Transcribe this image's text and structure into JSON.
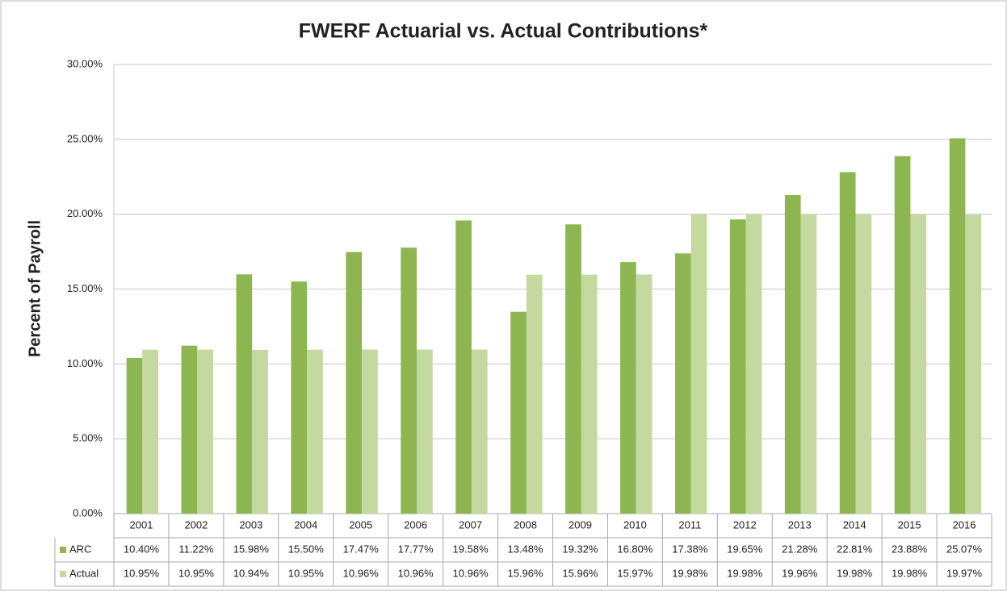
{
  "chart_data": {
    "type": "bar",
    "title": "FWERF Actuarial vs. Actual Contributions*",
    "y_label": "Percent of Payroll",
    "categories": [
      "2001",
      "2002",
      "2003",
      "2004",
      "2005",
      "2006",
      "2007",
      "2008",
      "2009",
      "2010",
      "2011",
      "2012",
      "2013",
      "2014",
      "2015",
      "2016"
    ],
    "series": [
      {
        "name": "ARC",
        "color": "#8db652",
        "values": [
          10.4,
          11.22,
          15.98,
          15.5,
          17.47,
          17.77,
          19.58,
          13.48,
          19.32,
          16.8,
          17.38,
          19.65,
          21.28,
          22.81,
          23.88,
          25.07
        ],
        "value_labels": [
          "10.40%",
          "11.22%",
          "15.98%",
          "15.50%",
          "17.47%",
          "17.77%",
          "19.58%",
          "13.48%",
          "19.32%",
          "16.80%",
          "17.38%",
          "19.65%",
          "21.28%",
          "22.81%",
          "23.88%",
          "25.07%"
        ]
      },
      {
        "name": "Actual",
        "color": "#c4d9a0",
        "values": [
          10.95,
          10.95,
          10.94,
          10.95,
          10.96,
          10.96,
          10.96,
          15.96,
          15.96,
          15.97,
          19.98,
          19.98,
          19.96,
          19.98,
          19.98,
          19.97
        ],
        "value_labels": [
          "10.95%",
          "10.95%",
          "10.94%",
          "10.95%",
          "10.96%",
          "10.96%",
          "10.96%",
          "15.96%",
          "15.96%",
          "15.97%",
          "19.98%",
          "19.98%",
          "19.96%",
          "19.98%",
          "19.98%",
          "19.97%"
        ]
      }
    ],
    "ylim": [
      0,
      30
    ],
    "yticks": [
      {
        "value": 0,
        "label": "0.00%"
      },
      {
        "value": 5,
        "label": "5.00%"
      },
      {
        "value": 10,
        "label": "10.00%"
      },
      {
        "value": 15,
        "label": "15.00%"
      },
      {
        "value": 20,
        "label": "20.00%"
      },
      {
        "value": 25,
        "label": "25.00%"
      },
      {
        "value": 30,
        "label": "30.00%"
      }
    ],
    "grid": true
  }
}
